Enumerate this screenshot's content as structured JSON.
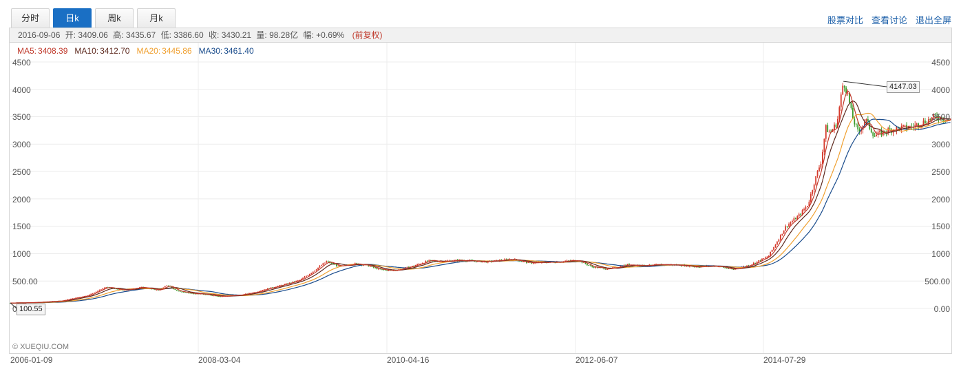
{
  "tabs": [
    {
      "label": "分时",
      "active": false
    },
    {
      "label": "日k",
      "active": true
    },
    {
      "label": "周k",
      "active": false
    },
    {
      "label": "月k",
      "active": false
    }
  ],
  "links": [
    "股票对比",
    "查看讨论",
    "退出全屏"
  ],
  "info": {
    "date": "2016-09-06",
    "open_label": "开:",
    "open": "3409.06",
    "high_label": "高:",
    "high": "3435.67",
    "low_label": "低:",
    "low": "3386.60",
    "close_label": "收:",
    "close": "3430.21",
    "volume_label": "量:",
    "volume": "98.28亿",
    "change_label": "幅:",
    "change": "+0.69%",
    "adjust": "(前复权)"
  },
  "ma": {
    "ma5_label": "MA5:",
    "ma5": "3408.39",
    "ma10_label": "MA10:",
    "ma10": "3412.70",
    "ma20_label": "MA20:",
    "ma20": "3445.86",
    "ma30_label": "MA30:",
    "ma30": "3461.40",
    "colors": {
      "ma5": "#c0392b",
      "ma10": "#5e2a1f",
      "ma20": "#f0a030",
      "ma30": "#1a4c8c"
    }
  },
  "y_ticks_left": [
    "4500",
    "4000",
    "3500",
    "3000",
    "2500",
    "2000",
    "1500",
    "1000",
    "500.00",
    "0"
  ],
  "y_ticks_right": [
    "4500",
    "4000",
    "3500",
    "3000",
    "2500",
    "2000",
    "1500",
    "1000",
    "500.00",
    "0.00"
  ],
  "x_ticks": [
    "2006-01-09",
    "2008-03-04",
    "2010-04-16",
    "2012-06-07",
    "2014-07-29"
  ],
  "watermark": "© XUEQIU.COM",
  "max_marker": "4147.03",
  "min_marker": "100.55",
  "chart_data": {
    "type": "line",
    "title": "日k (前复权)",
    "xlabel": "",
    "ylabel": "",
    "ylim": [
      0,
      4500
    ],
    "x_ticks": [
      "2006-01-09",
      "2008-03-04",
      "2010-04-16",
      "2012-06-07",
      "2014-07-29"
    ],
    "x_range": [
      2006.02,
      2016.68
    ],
    "max_point": {
      "x": 2015.45,
      "y": 4147.03
    },
    "min_point": {
      "x": 2006.02,
      "y": 100.55
    },
    "series": [
      {
        "name": "close",
        "x": [
          2006.02,
          2006.3,
          2006.6,
          2006.9,
          2007.1,
          2007.3,
          2007.5,
          2007.7,
          2007.8,
          2007.9,
          2008.05,
          2008.2,
          2008.4,
          2008.6,
          2008.8,
          2008.9,
          2009.1,
          2009.3,
          2009.45,
          2009.6,
          2009.75,
          2009.9,
          2010.05,
          2010.2,
          2010.35,
          2010.55,
          2010.75,
          2010.9,
          2011.1,
          2011.4,
          2011.7,
          2011.9,
          2012.2,
          2012.45,
          2012.6,
          2012.8,
          2013.0,
          2013.2,
          2013.4,
          2013.6,
          2013.8,
          2014.0,
          2014.2,
          2014.4,
          2014.6,
          2014.8,
          2014.95,
          2015.05,
          2015.12,
          2015.2,
          2015.25,
          2015.3,
          2015.38,
          2015.45,
          2015.5,
          2015.55,
          2015.62,
          2015.7,
          2015.8,
          2015.95,
          2016.1,
          2016.2,
          2016.35,
          2016.5,
          2016.68
        ],
        "y": [
          100,
          108,
          140,
          240,
          390,
          330,
          390,
          330,
          430,
          320,
          280,
          260,
          220,
          240,
          300,
          350,
          430,
          520,
          680,
          860,
          760,
          820,
          790,
          710,
          690,
          760,
          870,
          860,
          880,
          850,
          900,
          830,
          850,
          880,
          760,
          720,
          800,
          780,
          800,
          790,
          760,
          780,
          710,
          800,
          950,
          1500,
          1700,
          1900,
          2300,
          2700,
          3300,
          3200,
          3400,
          4147,
          3900,
          3500,
          3200,
          3450,
          3150,
          3250,
          3300,
          3300,
          3400,
          3500,
          3430
        ]
      }
    ]
  }
}
